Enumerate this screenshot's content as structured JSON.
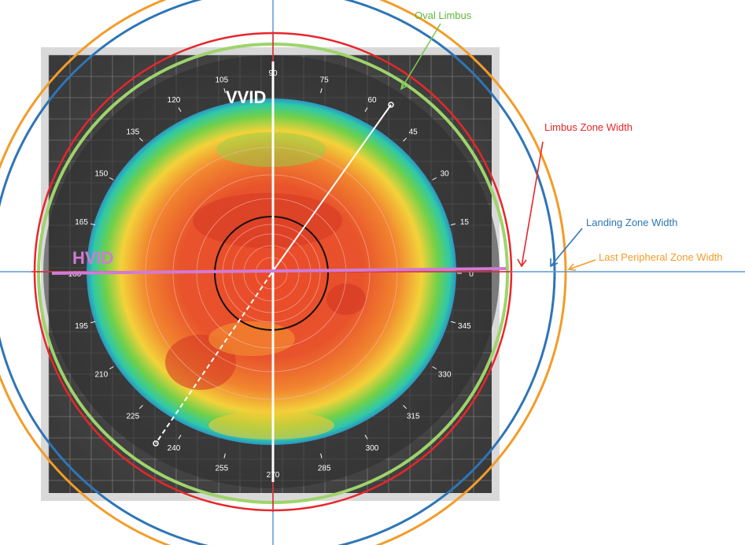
{
  "colors": {
    "oval_limbus": "#7ec850",
    "limbus_zone": "#e8262a",
    "landing_zone": "#2e75b6",
    "last_peripheral": "#f39c28",
    "hvid": "#d27ad6",
    "vvid": "#ffffff"
  },
  "labels": {
    "oval_limbus": "Oval Limbus",
    "limbus_zone_width": "Limbus Zone Width",
    "landing_zone_width": "Landing Zone Width",
    "last_peripheral_zone_width": "Last Peripheral Zone Width",
    "hvid": "HVID",
    "vvid": "VVID"
  },
  "angle_ticks": [
    "0",
    "15",
    "30",
    "45",
    "60",
    "75",
    "90",
    "105",
    "120",
    "135",
    "150",
    "165",
    "180",
    "195",
    "210",
    "225",
    "240",
    "255",
    "270",
    "285",
    "300",
    "315",
    "330",
    "345"
  ]
}
